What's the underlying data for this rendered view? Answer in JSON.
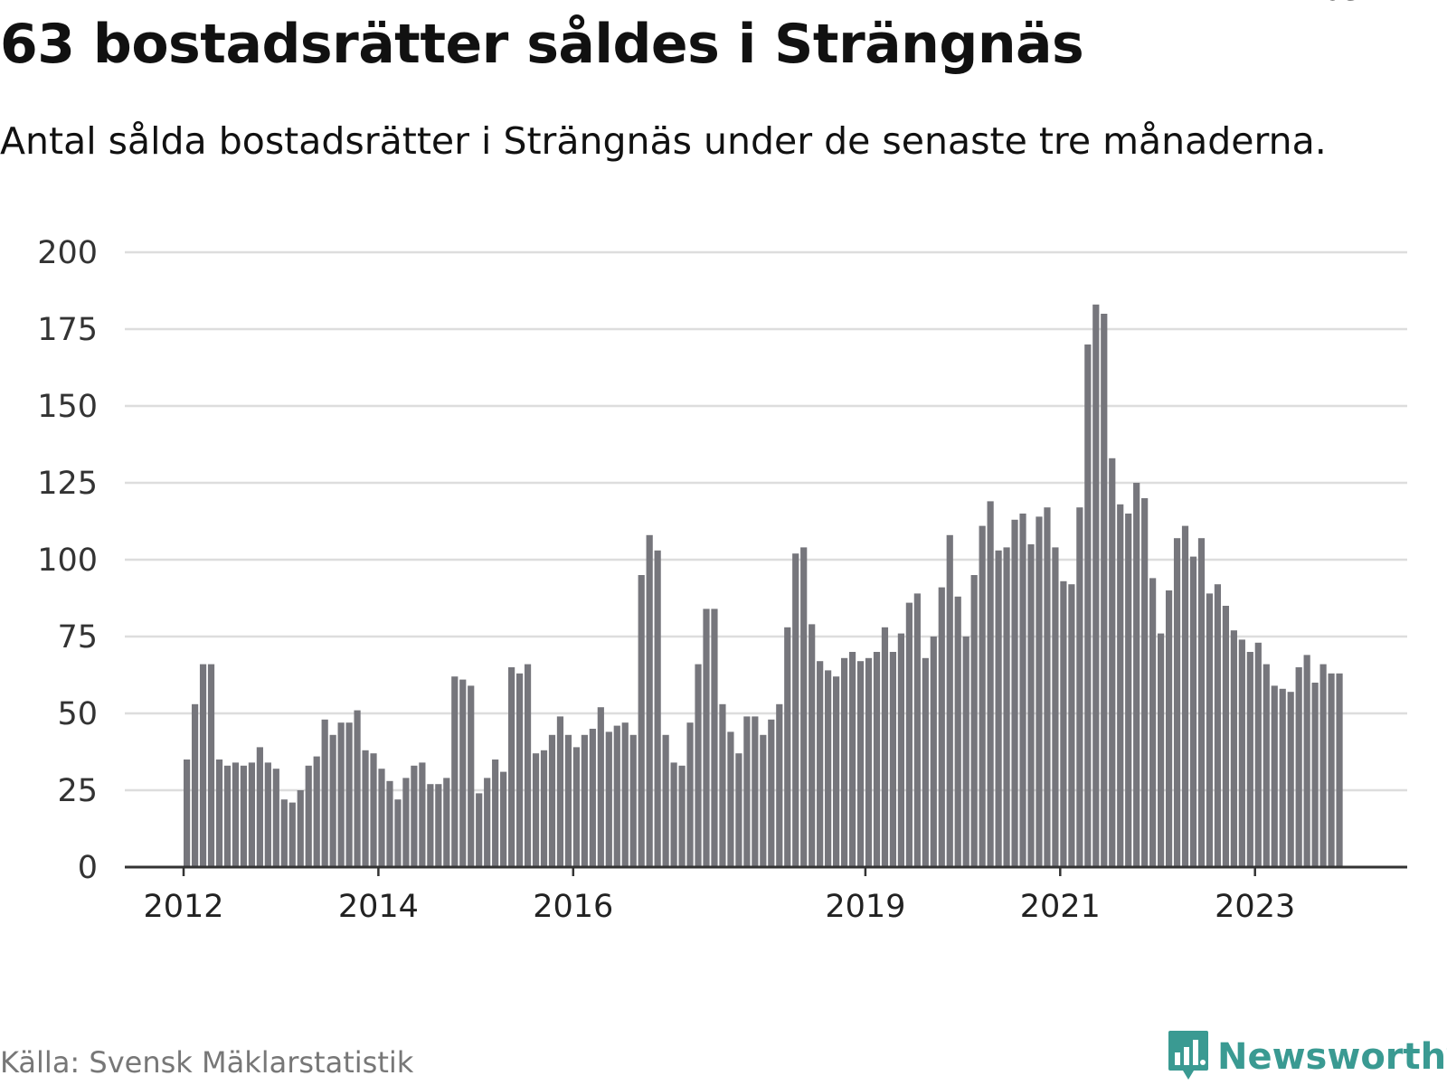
{
  "header": {
    "title": "63 bostadsrätter såldes i Strängnäs",
    "subtitle": "Antal sålda bostadsrätter i Strängnäs under de senaste tre månaderna."
  },
  "footer": {
    "source": "Källa: Svensk Mäklarstatistik",
    "brand": "Newsworthy",
    "brand_icon": "newsworthy-logo-icon"
  },
  "colors": {
    "bar": "#76767c",
    "highlight": "#1aa89c",
    "grid": "#dddddd",
    "axis": "#333333",
    "brand": "#3a9a92"
  },
  "chart_data": {
    "type": "bar",
    "title": "63 bostadsrätter såldes i Strängnäs",
    "subtitle": "Antal sålda bostadsrätter i Strängnäs under de senaste tre månaderna.",
    "xlabel": "",
    "ylabel": "",
    "ylim": [
      0,
      200
    ],
    "yticks": [
      0,
      25,
      50,
      75,
      100,
      125,
      150,
      175,
      200
    ],
    "xtick_labels": [
      "2012",
      "2014",
      "2016",
      "2019",
      "2021",
      "2023"
    ],
    "grid": true,
    "highlight_label": "63",
    "highlight_index": 143,
    "values": [
      35,
      53,
      66,
      66,
      35,
      33,
      34,
      33,
      34,
      39,
      34,
      32,
      22,
      21,
      25,
      33,
      36,
      48,
      43,
      47,
      47,
      51,
      38,
      37,
      32,
      28,
      22,
      29,
      33,
      34,
      27,
      27,
      29,
      62,
      61,
      59,
      24,
      29,
      35,
      31,
      65,
      63,
      66,
      37,
      38,
      43,
      49,
      43,
      39,
      43,
      45,
      52,
      44,
      46,
      47,
      43,
      95,
      108,
      103,
      43,
      34,
      33,
      47,
      66,
      84,
      84,
      53,
      44,
      37,
      49,
      49,
      43,
      48,
      53,
      78,
      102,
      104,
      79,
      67,
      64,
      62,
      68,
      70,
      67,
      68,
      70,
      78,
      70,
      76,
      86,
      89,
      68,
      75,
      91,
      108,
      88,
      75,
      95,
      111,
      119,
      103,
      104,
      113,
      115,
      105,
      114,
      117,
      104,
      93,
      92,
      117,
      170,
      183,
      180,
      133,
      118,
      115,
      125,
      120,
      94,
      76,
      90,
      107,
      111,
      101,
      107,
      89,
      92,
      85,
      77,
      74,
      70,
      73,
      66,
      59,
      58,
      57,
      65,
      69,
      60,
      66,
      63,
      63
    ]
  }
}
